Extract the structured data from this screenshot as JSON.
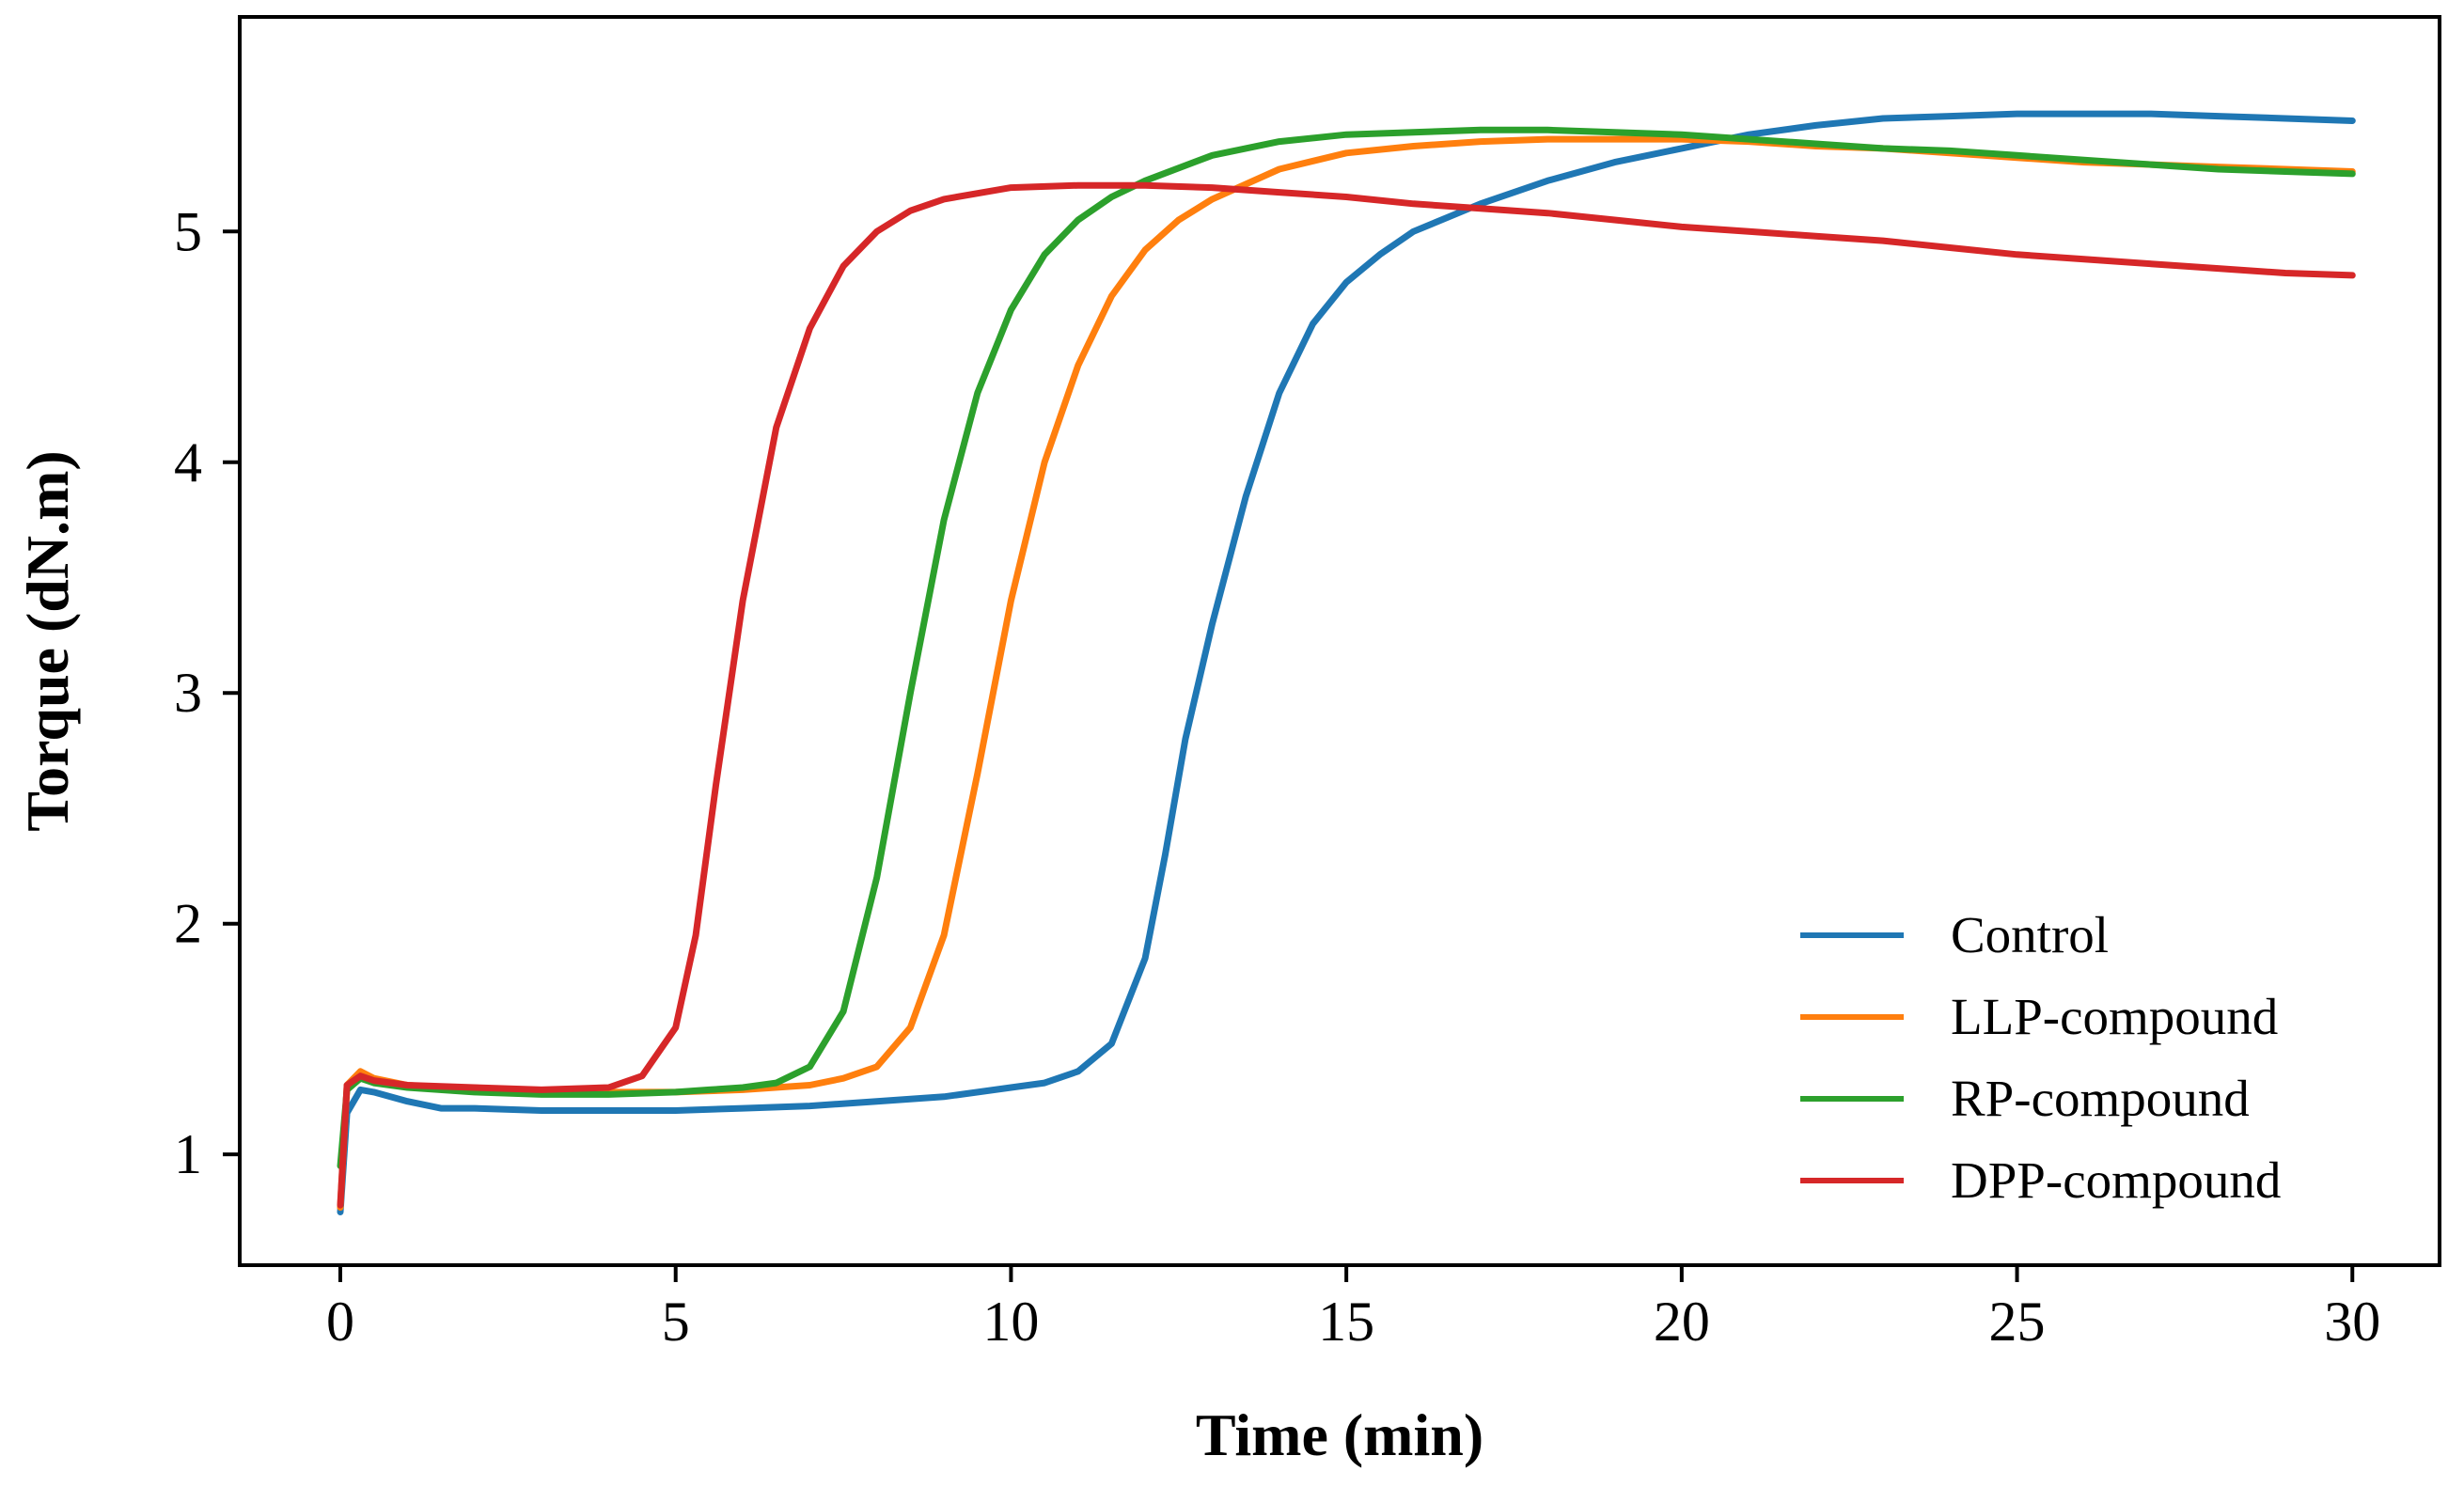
{
  "chart_data": {
    "type": "line",
    "title": "",
    "xlabel": "Time (min)",
    "ylabel": "Torque (dN.m)",
    "xlim": [
      -1.5,
      31.3
    ],
    "ylim": [
      0.52,
      5.93
    ],
    "xticks": [
      0,
      5,
      10,
      15,
      20,
      25,
      30
    ],
    "yticks": [
      1,
      2,
      3,
      4,
      5
    ],
    "grid": false,
    "legend_position": "bottom-right",
    "series": [
      {
        "name": "Control",
        "color": "#1f77b4",
        "x": [
          0,
          0.1,
          0.3,
          0.5,
          1,
          1.5,
          2,
          3,
          4,
          5,
          6,
          7,
          8,
          9,
          10,
          10.5,
          11,
          11.5,
          12,
          12.3,
          12.6,
          13,
          13.5,
          14,
          14.5,
          15,
          15.5,
          16,
          17,
          18,
          19,
          20,
          21,
          22,
          23,
          24,
          25,
          26,
          27,
          28,
          29,
          30
        ],
        "values": [
          0.75,
          1.18,
          1.28,
          1.27,
          1.23,
          1.2,
          1.2,
          1.19,
          1.19,
          1.19,
          1.2,
          1.21,
          1.23,
          1.25,
          1.29,
          1.31,
          1.36,
          1.48,
          1.85,
          2.3,
          2.8,
          3.3,
          3.85,
          4.3,
          4.6,
          4.78,
          4.9,
          5.0,
          5.12,
          5.22,
          5.3,
          5.36,
          5.42,
          5.46,
          5.49,
          5.5,
          5.51,
          5.51,
          5.51,
          5.5,
          5.49,
          5.48
        ]
      },
      {
        "name": "LLP-compound",
        "color": "#ff7f0e",
        "x": [
          0,
          0.1,
          0.3,
          0.5,
          1,
          2,
          3,
          4,
          5,
          6,
          7,
          7.5,
          8,
          8.5,
          9,
          9.5,
          10,
          10.5,
          11,
          11.5,
          12,
          12.5,
          13,
          14,
          15,
          16,
          17,
          18,
          19,
          20,
          21,
          22,
          23,
          24,
          25,
          26,
          27,
          28,
          29,
          30
        ],
        "values": [
          0.77,
          1.3,
          1.36,
          1.33,
          1.3,
          1.28,
          1.27,
          1.27,
          1.27,
          1.28,
          1.3,
          1.33,
          1.38,
          1.55,
          1.95,
          2.65,
          3.4,
          4.0,
          4.42,
          4.72,
          4.92,
          5.05,
          5.14,
          5.27,
          5.34,
          5.37,
          5.39,
          5.4,
          5.4,
          5.4,
          5.39,
          5.37,
          5.36,
          5.34,
          5.32,
          5.3,
          5.29,
          5.28,
          5.27,
          5.26
        ]
      },
      {
        "name": "RP-compound",
        "color": "#2ca02c",
        "x": [
          0,
          0.1,
          0.3,
          0.5,
          1,
          2,
          3,
          4,
          5,
          5.5,
          6,
          6.5,
          7,
          7.5,
          8,
          8.5,
          9,
          9.5,
          10,
          10.5,
          11,
          11.5,
          12,
          13,
          14,
          15,
          16,
          17,
          18,
          19,
          20,
          21,
          22,
          23,
          24,
          25,
          26,
          27,
          28,
          29,
          30
        ],
        "values": [
          0.95,
          1.28,
          1.33,
          1.31,
          1.29,
          1.27,
          1.26,
          1.26,
          1.27,
          1.28,
          1.29,
          1.31,
          1.38,
          1.62,
          2.2,
          3.0,
          3.75,
          4.3,
          4.66,
          4.9,
          5.05,
          5.15,
          5.22,
          5.33,
          5.39,
          5.42,
          5.43,
          5.44,
          5.44,
          5.43,
          5.42,
          5.4,
          5.38,
          5.36,
          5.35,
          5.33,
          5.31,
          5.29,
          5.27,
          5.26,
          5.25
        ]
      },
      {
        "name": "DPP-compound",
        "color": "#d62728",
        "x": [
          0,
          0.1,
          0.3,
          0.5,
          1,
          2,
          3,
          4,
          4.5,
          5,
          5.3,
          5.6,
          6,
          6.5,
          7,
          7.5,
          8,
          8.5,
          9,
          10,
          11,
          12,
          13,
          14,
          15,
          16,
          17,
          18,
          19,
          20,
          21,
          22,
          23,
          24,
          25,
          26,
          27,
          28,
          29,
          30
        ],
        "values": [
          0.78,
          1.3,
          1.34,
          1.32,
          1.3,
          1.29,
          1.28,
          1.29,
          1.34,
          1.55,
          1.95,
          2.6,
          3.4,
          4.15,
          4.58,
          4.85,
          5.0,
          5.09,
          5.14,
          5.19,
          5.2,
          5.2,
          5.19,
          5.17,
          5.15,
          5.12,
          5.1,
          5.08,
          5.05,
          5.02,
          5.0,
          4.98,
          4.96,
          4.93,
          4.9,
          4.88,
          4.86,
          4.84,
          4.82,
          4.81
        ]
      }
    ]
  }
}
